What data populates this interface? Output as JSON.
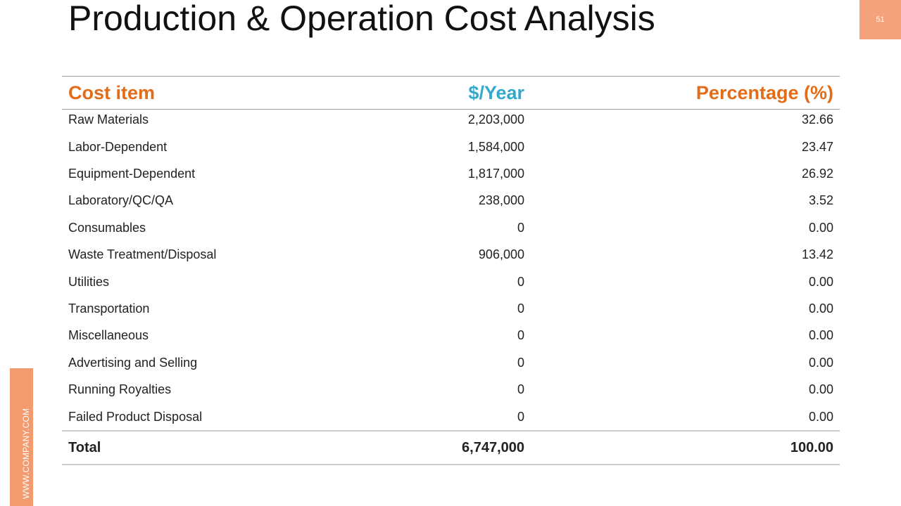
{
  "title": "Production & Operation Cost Analysis",
  "page_number": "51",
  "side_label": "WWW.COMPANY.COM",
  "colors": {
    "accent_orange": "#E46C19",
    "accent_blue": "#33A9CD",
    "box_orange": "#F4A27B",
    "side_orange": "#F39A6E"
  },
  "table": {
    "headers": {
      "item": "Cost item",
      "year": "$/Year",
      "percent": "Percentage (%)"
    },
    "rows": [
      {
        "item": "Raw Materials",
        "year": "2,203,000",
        "percent": "32.66"
      },
      {
        "item": "Labor-Dependent",
        "year": "1,584,000",
        "percent": "23.47"
      },
      {
        "item": "Equipment-Dependent",
        "year": "1,817,000",
        "percent": "26.92"
      },
      {
        "item": "Laboratory/QC/QA",
        "year": "238,000",
        "percent": "3.52"
      },
      {
        "item": "Consumables",
        "year": "0",
        "percent": "0.00"
      },
      {
        "item": "Waste Treatment/Disposal",
        "year": "906,000",
        "percent": "13.42"
      },
      {
        "item": "Utilities",
        "year": "0",
        "percent": "0.00"
      },
      {
        "item": "Transportation",
        "year": "0",
        "percent": "0.00"
      },
      {
        "item": "Miscellaneous",
        "year": "0",
        "percent": "0.00"
      },
      {
        "item": "Advertising and Selling",
        "year": "0",
        "percent": "0.00"
      },
      {
        "item": "Running Royalties",
        "year": "0",
        "percent": "0.00"
      },
      {
        "item": "Failed Product Disposal",
        "year": "0",
        "percent": "0.00"
      }
    ],
    "total": {
      "item": "Total",
      "year": "6,747,000",
      "percent": "100.00"
    }
  }
}
